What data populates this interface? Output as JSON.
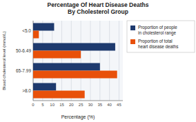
{
  "chart_data": {
    "type": "bar",
    "orientation": "horizontal",
    "title": "Percentage Of Heart Disease Deaths\nBy Cholesterol Group",
    "x_label": "Percentage (%)",
    "y_label": "Blood cholesterol level (mmol/L)",
    "categories": [
      "<5.0",
      "50-6.49",
      "65-7.99",
      ">8.0"
    ],
    "series": [
      {
        "name": "Proportion of people\nin cholesterol range",
        "color": "#1e3a6e",
        "values": [
          11,
          43,
          35,
          12
        ]
      },
      {
        "name": "Proportion of total\nheart disease deaths",
        "color": "#e8500a",
        "values": [
          3,
          25,
          44,
          27
        ]
      }
    ],
    "xlim": [
      0,
      47
    ],
    "xticks": [
      0,
      5,
      10,
      15,
      20,
      25,
      30,
      35,
      40,
      45
    ],
    "grid": true,
    "legend": "right"
  }
}
